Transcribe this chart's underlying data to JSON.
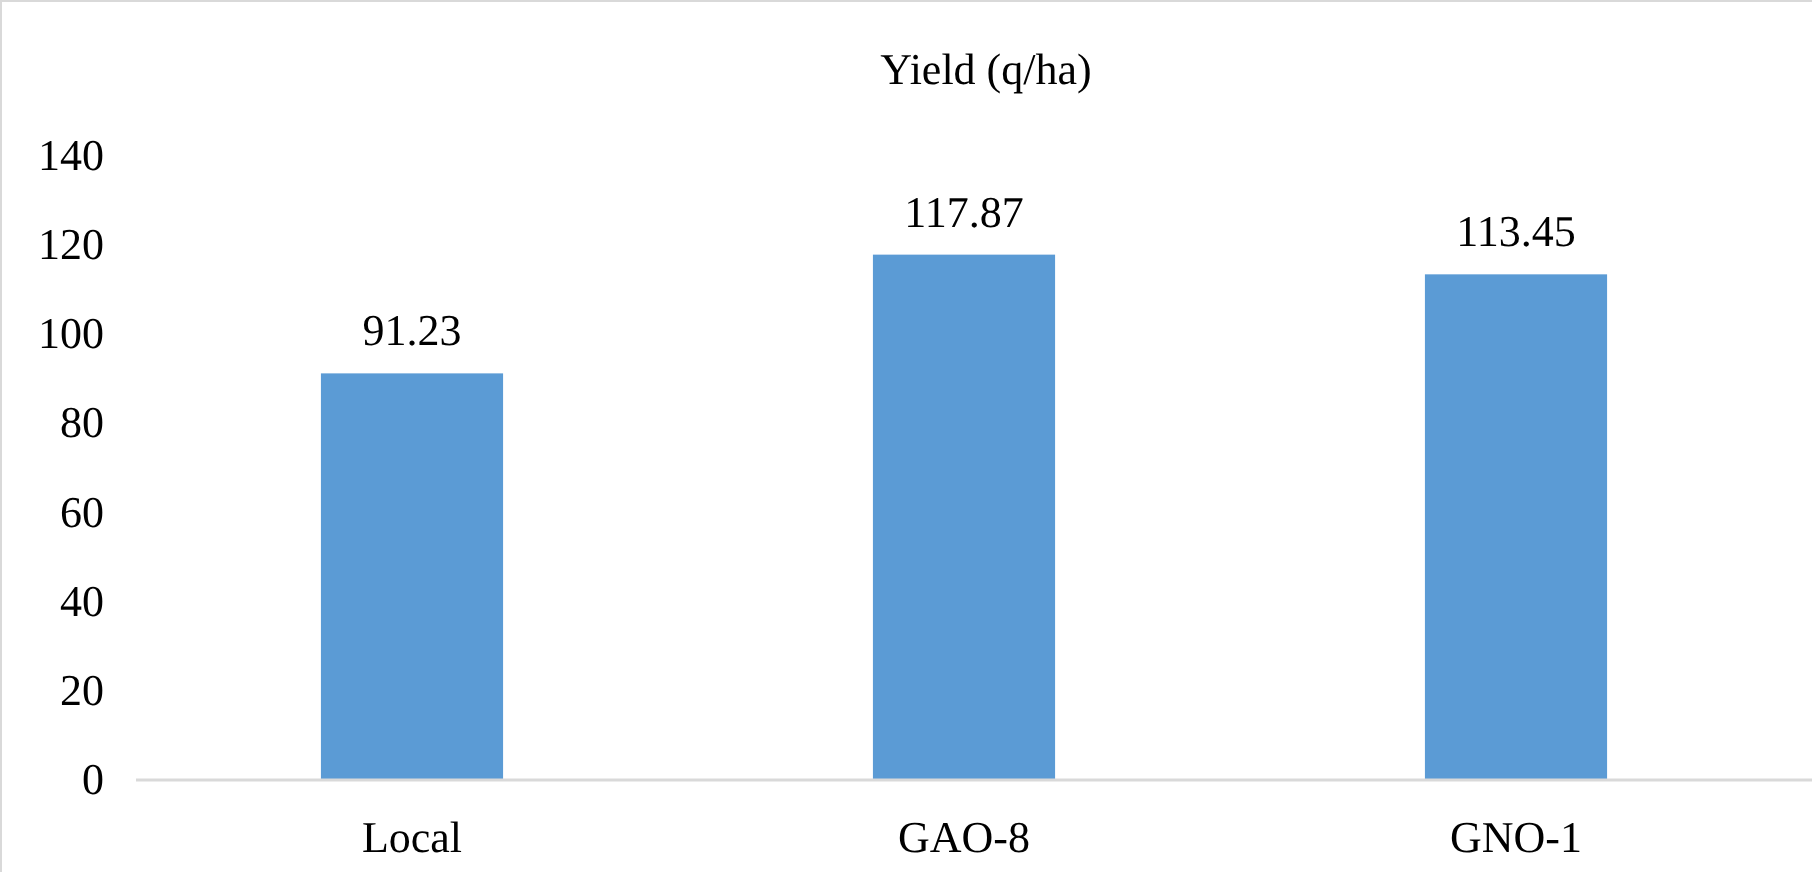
{
  "chart_data": {
    "type": "bar",
    "title": "Yield (q/ha)",
    "categories": [
      "Local",
      "GAO-8",
      "GNO-1"
    ],
    "values": [
      91.23,
      117.87,
      113.45
    ],
    "color": "#5b9bd5",
    "ylim": [
      0,
      140
    ],
    "yticks": [
      0,
      20,
      40,
      60,
      80,
      100,
      120,
      140
    ],
    "data_labels": true,
    "grid": false
  }
}
